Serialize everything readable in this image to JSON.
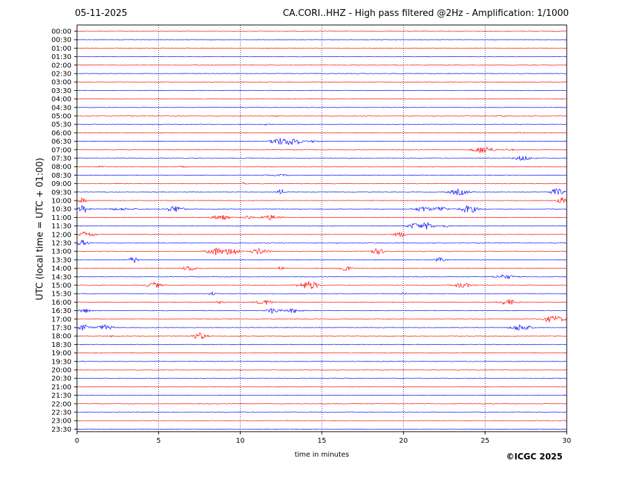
{
  "header": {
    "date": "05-11-2025",
    "title": "CA.CORI..HHZ - High pass filtered @2Hz - Amplification: 1/1000"
  },
  "footer": {
    "copyright": "©ICGC 2025"
  },
  "colors": {
    "even_rows": "#ff0000",
    "odd_rows": "#0000ff",
    "grid": "#000080",
    "frame": "#000000"
  },
  "chart_data": {
    "type": "line",
    "title": "CA.CORI..HHZ - High pass filtered @2Hz - Amplification: 1/1000",
    "xlabel": "time in minutes",
    "ylabel": "UTC (local time = UTC + 01:00)",
    "xlim": [
      0,
      30
    ],
    "xticks": [
      0,
      5,
      10,
      15,
      20,
      25,
      30
    ],
    "grid": "vertical dotted at 5-minute ticks",
    "rows": [
      "00:00",
      "00:30",
      "01:00",
      "01:30",
      "02:00",
      "02:30",
      "03:00",
      "03:30",
      "04:00",
      "04:30",
      "05:00",
      "05:30",
      "06:00",
      "06:30",
      "07:00",
      "07:30",
      "08:00",
      "08:30",
      "09:00",
      "09:30",
      "10:00",
      "10:30",
      "11:00",
      "11:30",
      "12:00",
      "12:30",
      "13:00",
      "13:30",
      "14:00",
      "14:30",
      "15:00",
      "15:30",
      "16:00",
      "16:30",
      "17:00",
      "17:30",
      "18:00",
      "18:30",
      "19:00",
      "19:30",
      "20:00",
      "20:30",
      "21:00",
      "21:30",
      "22:00",
      "22:30",
      "23:00",
      "23:30"
    ],
    "bursts": [
      {
        "row": "05:00",
        "center_min": 12.2,
        "duration_min": 0.3,
        "amplitude": 0.2
      },
      {
        "row": "05:00",
        "center_min": 26.0,
        "duration_min": 0.6,
        "amplitude": 0.2
      },
      {
        "row": "05:30",
        "center_min": 11.5,
        "duration_min": 0.5,
        "amplitude": 0.2
      },
      {
        "row": "06:00",
        "center_min": 27.0,
        "duration_min": 1.0,
        "amplitude": 0.15
      },
      {
        "row": "06:30",
        "center_min": 12.3,
        "duration_min": 1.0,
        "amplitude": 0.8
      },
      {
        "row": "06:30",
        "center_min": 13.2,
        "duration_min": 1.2,
        "amplitude": 1.0
      },
      {
        "row": "06:30",
        "center_min": 14.5,
        "duration_min": 0.8,
        "amplitude": 0.25
      },
      {
        "row": "07:00",
        "center_min": 24.9,
        "duration_min": 1.4,
        "amplitude": 0.9
      },
      {
        "row": "07:00",
        "center_min": 26.5,
        "duration_min": 0.8,
        "amplitude": 0.2
      },
      {
        "row": "07:30",
        "center_min": 27.3,
        "duration_min": 1.2,
        "amplitude": 0.6
      },
      {
        "row": "08:00",
        "center_min": 1.5,
        "duration_min": 0.5,
        "amplitude": 0.2
      },
      {
        "row": "08:00",
        "center_min": 6.5,
        "duration_min": 0.6,
        "amplitude": 0.2
      },
      {
        "row": "08:30",
        "center_min": 12.5,
        "duration_min": 1.5,
        "amplitude": 0.15
      },
      {
        "row": "09:00",
        "center_min": 10.2,
        "duration_min": 0.4,
        "amplitude": 0.2
      },
      {
        "row": "09:30",
        "center_min": 12.5,
        "duration_min": 0.5,
        "amplitude": 0.7
      },
      {
        "row": "09:30",
        "center_min": 23.4,
        "duration_min": 1.4,
        "amplitude": 0.7
      },
      {
        "row": "09:30",
        "center_min": 29.4,
        "duration_min": 1.0,
        "amplitude": 0.8
      },
      {
        "row": "10:00",
        "center_min": 0.3,
        "duration_min": 0.6,
        "amplitude": 0.6
      },
      {
        "row": "10:00",
        "center_min": 29.7,
        "duration_min": 0.6,
        "amplitude": 0.8
      },
      {
        "row": "10:30",
        "center_min": 0.4,
        "duration_min": 0.8,
        "amplitude": 0.9
      },
      {
        "row": "10:30",
        "center_min": 6.0,
        "duration_min": 1.2,
        "amplitude": 0.8
      },
      {
        "row": "10:30",
        "center_min": 2.7,
        "duration_min": 2.2,
        "amplitude": 0.25
      },
      {
        "row": "10:30",
        "center_min": 21.2,
        "duration_min": 1.2,
        "amplitude": 0.6
      },
      {
        "row": "10:30",
        "center_min": 22.3,
        "duration_min": 1.0,
        "amplitude": 0.6
      },
      {
        "row": "10:30",
        "center_min": 24.0,
        "duration_min": 1.2,
        "amplitude": 0.9
      },
      {
        "row": "11:00",
        "center_min": 8.8,
        "duration_min": 1.2,
        "amplitude": 0.6
      },
      {
        "row": "11:00",
        "center_min": 10.5,
        "duration_min": 0.6,
        "amplitude": 0.5
      },
      {
        "row": "11:00",
        "center_min": 11.9,
        "duration_min": 1.4,
        "amplitude": 0.6
      },
      {
        "row": "11:30",
        "center_min": 20.7,
        "duration_min": 1.0,
        "amplitude": 0.7
      },
      {
        "row": "11:30",
        "center_min": 21.5,
        "duration_min": 0.8,
        "amplitude": 0.9
      },
      {
        "row": "11:30",
        "center_min": 22.5,
        "duration_min": 0.8,
        "amplitude": 0.3
      },
      {
        "row": "12:00",
        "center_min": 0.5,
        "duration_min": 0.8,
        "amplitude": 0.7
      },
      {
        "row": "12:00",
        "center_min": 1.0,
        "duration_min": 0.6,
        "amplitude": 0.3
      },
      {
        "row": "12:00",
        "center_min": 19.8,
        "duration_min": 0.8,
        "amplitude": 0.6
      },
      {
        "row": "12:30",
        "center_min": 0.3,
        "duration_min": 1.0,
        "amplitude": 0.6
      },
      {
        "row": "13:00",
        "center_min": 8.5,
        "duration_min": 1.2,
        "amplitude": 0.9
      },
      {
        "row": "13:00",
        "center_min": 9.5,
        "duration_min": 1.0,
        "amplitude": 1.0
      },
      {
        "row": "13:00",
        "center_min": 11.2,
        "duration_min": 1.2,
        "amplitude": 0.7
      },
      {
        "row": "13:00",
        "center_min": 18.4,
        "duration_min": 1.2,
        "amplitude": 0.6
      },
      {
        "row": "13:30",
        "center_min": 3.5,
        "duration_min": 0.8,
        "amplitude": 0.7
      },
      {
        "row": "13:30",
        "center_min": 22.2,
        "duration_min": 0.8,
        "amplitude": 0.5
      },
      {
        "row": "14:00",
        "center_min": 6.9,
        "duration_min": 1.0,
        "amplitude": 0.6
      },
      {
        "row": "14:00",
        "center_min": 12.5,
        "duration_min": 0.4,
        "amplitude": 0.4
      },
      {
        "row": "14:00",
        "center_min": 16.4,
        "duration_min": 0.8,
        "amplitude": 0.8
      },
      {
        "row": "14:30",
        "center_min": 26.2,
        "duration_min": 1.4,
        "amplitude": 0.5
      },
      {
        "row": "15:00",
        "center_min": 4.7,
        "duration_min": 1.0,
        "amplitude": 0.7
      },
      {
        "row": "15:00",
        "center_min": 14.2,
        "duration_min": 1.4,
        "amplitude": 1.0
      },
      {
        "row": "15:00",
        "center_min": 23.6,
        "duration_min": 1.2,
        "amplitude": 0.6
      },
      {
        "row": "15:30",
        "center_min": 8.3,
        "duration_min": 0.4,
        "amplitude": 0.5
      },
      {
        "row": "15:30",
        "center_min": 20.0,
        "duration_min": 0.5,
        "amplitude": 0.3
      },
      {
        "row": "16:00",
        "center_min": 11.5,
        "duration_min": 1.2,
        "amplitude": 0.6
      },
      {
        "row": "16:00",
        "center_min": 8.8,
        "duration_min": 1.0,
        "amplitude": 0.3
      },
      {
        "row": "16:00",
        "center_min": 26.4,
        "duration_min": 1.2,
        "amplitude": 0.7
      },
      {
        "row": "16:30",
        "center_min": 0.5,
        "duration_min": 0.8,
        "amplitude": 0.5
      },
      {
        "row": "16:30",
        "center_min": 12.0,
        "duration_min": 0.8,
        "amplitude": 0.7
      },
      {
        "row": "16:30",
        "center_min": 13.2,
        "duration_min": 1.2,
        "amplitude": 0.5
      },
      {
        "row": "17:00",
        "center_min": 29.2,
        "duration_min": 1.6,
        "amplitude": 0.8
      },
      {
        "row": "17:30",
        "center_min": 0.4,
        "duration_min": 0.8,
        "amplitude": 0.8
      },
      {
        "row": "17:30",
        "center_min": 1.7,
        "duration_min": 1.2,
        "amplitude": 0.6
      },
      {
        "row": "17:30",
        "center_min": 27.2,
        "duration_min": 1.4,
        "amplitude": 0.8
      },
      {
        "row": "18:00",
        "center_min": 7.5,
        "duration_min": 1.0,
        "amplitude": 0.8
      },
      {
        "row": "18:00",
        "center_min": 2.1,
        "duration_min": 0.3,
        "amplitude": 0.2
      }
    ]
  }
}
